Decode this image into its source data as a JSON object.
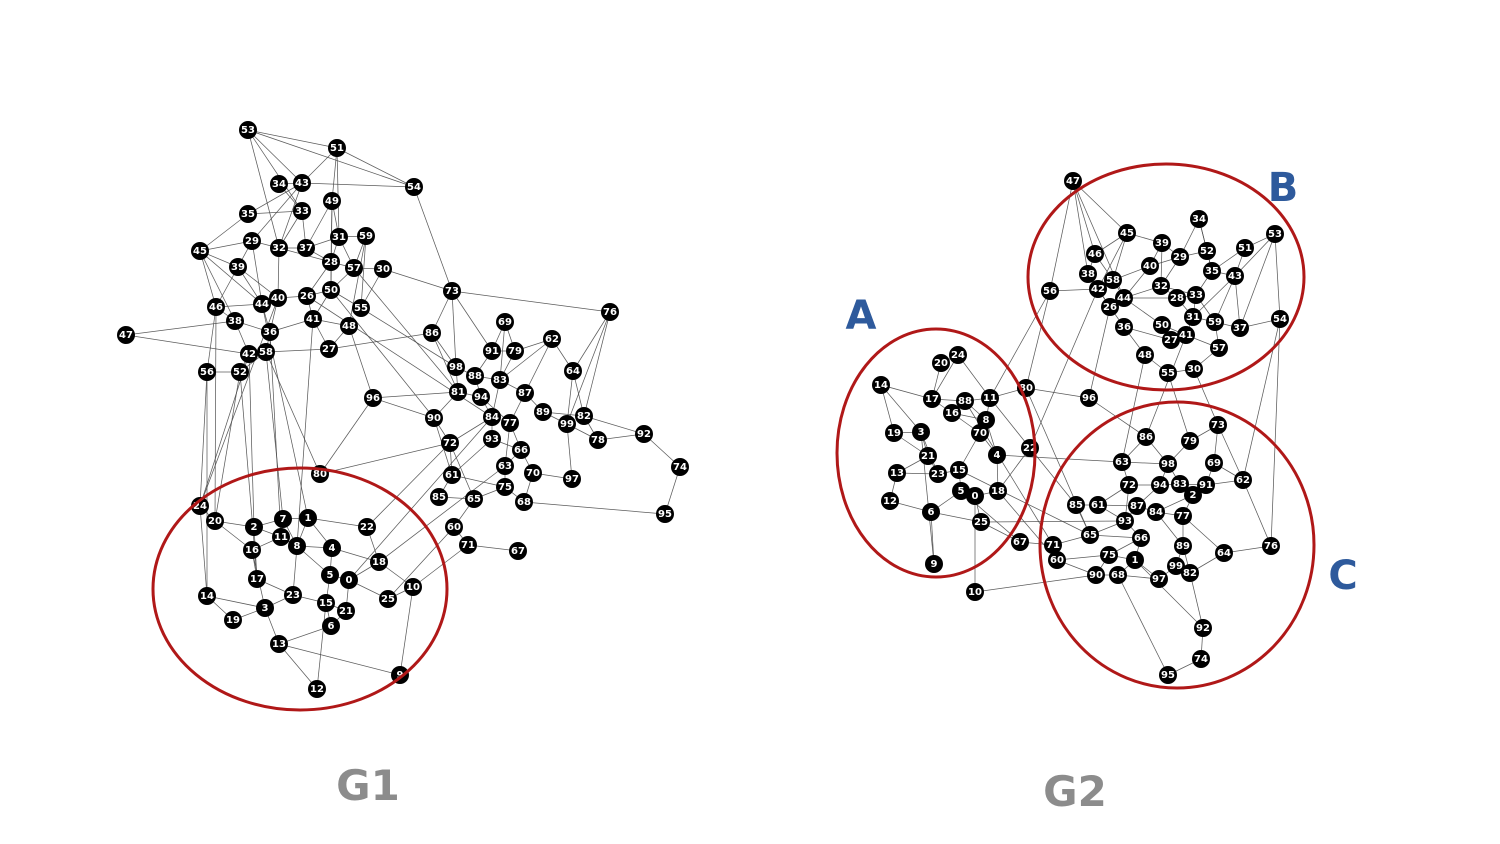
{
  "graphs": [
    {
      "id": "G1",
      "title": "G1",
      "nodes": [
        "53",
        "51",
        "34",
        "43",
        "54",
        "35",
        "33",
        "49",
        "45",
        "29",
        "32",
        "37",
        "31",
        "59",
        "39",
        "28",
        "57",
        "30",
        "46",
        "44",
        "40",
        "26",
        "50",
        "55",
        "38",
        "36",
        "41",
        "48",
        "27",
        "47",
        "42",
        "58",
        "56",
        "52",
        "73",
        "76",
        "86",
        "69",
        "62",
        "91",
        "79",
        "98",
        "88",
        "83",
        "64",
        "96",
        "81",
        "94",
        "87",
        "90",
        "84",
        "77",
        "89",
        "82",
        "99",
        "93",
        "66",
        "72",
        "78",
        "92",
        "80",
        "63",
        "70",
        "97",
        "74",
        "61",
        "75",
        "85",
        "65",
        "68",
        "60",
        "95",
        "24",
        "20",
        "7",
        "1",
        "2",
        "11",
        "22",
        "16",
        "8",
        "4",
        "17",
        "18",
        "5",
        "0",
        "14",
        "3",
        "23",
        "10",
        "19",
        "15",
        "21",
        "25",
        "6",
        "13",
        "71",
        "67",
        "12",
        "9"
      ],
      "clusters": [
        {
          "label": ""
        }
      ]
    },
    {
      "id": "G2",
      "title": "G2",
      "nodes": [
        "47",
        "45",
        "39",
        "34",
        "53",
        "46",
        "29",
        "52",
        "51",
        "40",
        "38",
        "58",
        "42",
        "32",
        "35",
        "43",
        "56",
        "26",
        "44",
        "28",
        "33",
        "50",
        "31",
        "59",
        "36",
        "27",
        "41",
        "37",
        "54",
        "48",
        "57",
        "55",
        "30",
        "20",
        "24",
        "14",
        "17",
        "88",
        "11",
        "16",
        "8",
        "19",
        "3",
        "70",
        "21",
        "13",
        "23",
        "15",
        "4",
        "12",
        "5",
        "0",
        "18",
        "6",
        "25",
        "9",
        "10",
        "80",
        "22",
        "96",
        "86",
        "79",
        "73",
        "63",
        "98",
        "94",
        "83",
        "91",
        "69",
        "72",
        "62",
        "85",
        "61",
        "2",
        "87",
        "84",
        "77",
        "93",
        "65",
        "66",
        "89",
        "67",
        "71",
        "75",
        "1",
        "60",
        "64",
        "76",
        "90",
        "68",
        "97",
        "99",
        "82",
        "92",
        "74",
        "95"
      ],
      "clusters": [
        {
          "label": "A"
        },
        {
          "label": "B"
        },
        {
          "label": "C"
        }
      ]
    }
  ]
}
